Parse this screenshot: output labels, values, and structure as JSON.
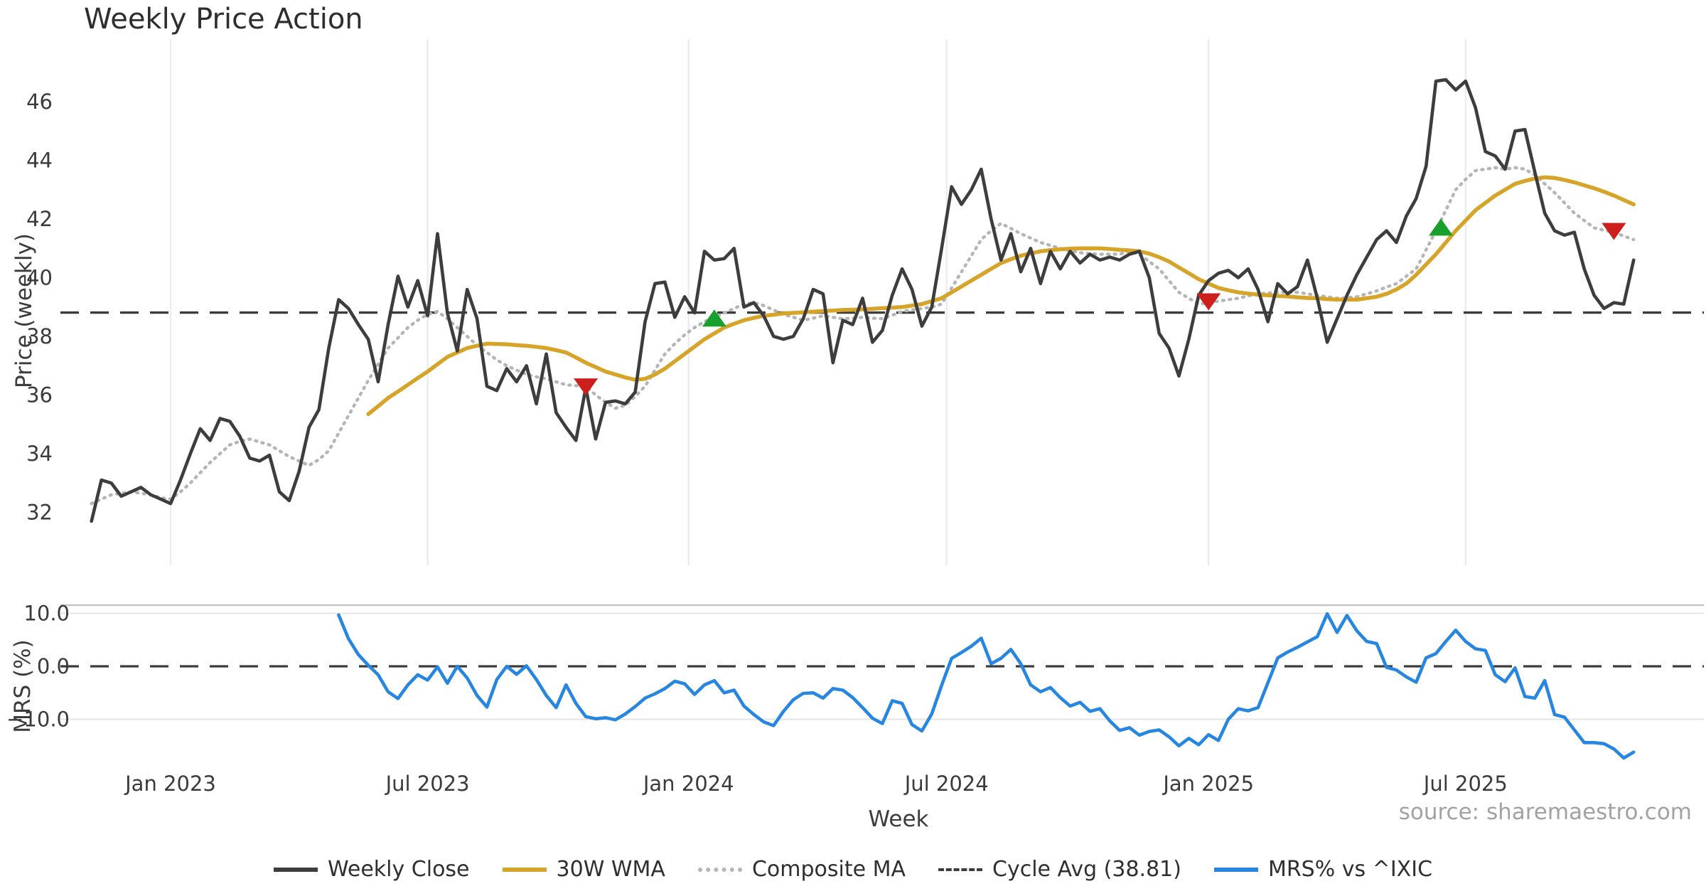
{
  "title": "Weekly Price Action",
  "source": "source: sharemaestro.com",
  "axes": {
    "price_label": "Price (weekly)",
    "mrs_label": "MRS (%)",
    "x_label": "Week"
  },
  "colors": {
    "close": "#3d3d3d",
    "wma": "#d7a42a",
    "composite": "#b5b5b5",
    "cycle": "#3c3c3c",
    "mrs": "#2786e0",
    "buy": "#18a02c",
    "sell": "#ce1f1f",
    "grid_vertical": "#e9ecf1",
    "grid_horizontal": "#e4e4e4",
    "top_spine": "#c2c2c2",
    "tick_text": "#3b3b3b"
  },
  "legend": [
    {
      "label": "Weekly Close",
      "color": "#3d3d3d",
      "style": "solid",
      "thickness": 6
    },
    {
      "label": "30W WMA",
      "color": "#d7a42a",
      "style": "solid",
      "thickness": 6
    },
    {
      "label": "Composite MA",
      "color": "#b5b5b5",
      "style": "dotted",
      "thickness": 6
    },
    {
      "label": "Cycle Avg (38.81)",
      "color": "#3c3c3c",
      "style": "dashed",
      "thickness": 4
    },
    {
      "label": "MRS% vs ^IXIC",
      "color": "#2786e0",
      "style": "solid",
      "thickness": 6
    }
  ],
  "chart_data": [
    {
      "type": "line",
      "title": "Weekly Price Action",
      "xlabel": "Week",
      "ylabel": "Price (weekly)",
      "x_unit": "weekly index, week 0 = early Nov 2022, 157 weeks total",
      "x_ticks": [
        {
          "week": 8,
          "label": "Jan 2023"
        },
        {
          "week": 34,
          "label": "Jul 2023"
        },
        {
          "week": 60.4,
          "label": "Jan 2024"
        },
        {
          "week": 86.5,
          "label": "Jul 2024"
        },
        {
          "week": 113,
          "label": "Jan 2025"
        },
        {
          "week": 139,
          "label": "Jul 2025"
        }
      ],
      "yticks": [
        32,
        34,
        36,
        38,
        40,
        42,
        44,
        46
      ],
      "ylim": [
        30.5,
        48.1
      ],
      "grid": "vertical-only",
      "cycle_avg": 38.81,
      "legend_position": "bottom-center",
      "series": [
        {
          "name": "Weekly Close",
          "values": [
            31.7,
            33.1,
            33.0,
            32.55,
            32.7,
            32.85,
            32.6,
            32.45,
            32.3,
            33.1,
            34.0,
            34.85,
            34.45,
            35.2,
            35.1,
            34.6,
            33.85,
            33.75,
            33.95,
            32.7,
            32.4,
            33.4,
            34.9,
            35.5,
            37.6,
            39.25,
            38.95,
            38.4,
            37.9,
            36.45,
            38.4,
            40.05,
            39.0,
            39.9,
            38.7,
            41.5,
            38.8,
            37.5,
            39.6,
            38.6,
            36.3,
            36.15,
            36.9,
            36.45,
            37.0,
            35.7,
            37.4,
            35.4,
            34.9,
            34.45,
            36.25,
            34.5,
            35.75,
            35.8,
            35.7,
            36.1,
            38.5,
            39.8,
            39.85,
            38.65,
            39.35,
            38.8,
            40.9,
            40.6,
            40.65,
            41.0,
            39.0,
            39.15,
            38.7,
            38.0,
            37.9,
            38.0,
            38.6,
            39.6,
            39.45,
            37.1,
            38.55,
            38.4,
            39.3,
            37.8,
            38.2,
            39.4,
            40.3,
            39.6,
            38.35,
            39.0,
            41.0,
            43.1,
            42.5,
            43.0,
            43.7,
            42.0,
            40.6,
            41.5,
            40.2,
            41.0,
            39.8,
            40.9,
            40.3,
            40.9,
            40.5,
            40.8,
            40.6,
            40.7,
            40.6,
            40.8,
            40.9,
            40.0,
            38.1,
            37.6,
            36.65,
            37.9,
            39.4,
            39.9,
            40.15,
            40.25,
            40.0,
            40.3,
            39.6,
            38.5,
            39.8,
            39.45,
            39.7,
            40.6,
            39.3,
            37.8,
            38.6,
            39.4,
            40.1,
            40.7,
            41.3,
            41.6,
            41.2,
            42.1,
            42.7,
            43.8,
            46.7,
            46.75,
            46.4,
            46.7,
            45.8,
            44.3,
            44.15,
            43.7,
            45.0,
            45.05,
            43.6,
            42.2,
            41.6,
            41.45,
            41.55,
            40.3,
            39.4,
            38.95,
            39.15,
            39.1,
            40.6
          ]
        },
        {
          "name": "30W WMA",
          "values": [
            null,
            null,
            null,
            null,
            null,
            null,
            null,
            null,
            null,
            null,
            null,
            null,
            null,
            null,
            null,
            null,
            null,
            null,
            null,
            null,
            null,
            null,
            null,
            null,
            null,
            null,
            null,
            null,
            35.35,
            35.62,
            35.9,
            36.12,
            36.35,
            36.58,
            36.8,
            37.05,
            37.3,
            37.45,
            37.6,
            37.68,
            37.75,
            37.74,
            37.73,
            37.7,
            37.68,
            37.64,
            37.6,
            37.53,
            37.45,
            37.28,
            37.1,
            36.95,
            36.8,
            36.7,
            36.6,
            36.52,
            36.55,
            36.7,
            36.9,
            37.15,
            37.4,
            37.65,
            37.9,
            38.1,
            38.3,
            38.43,
            38.55,
            38.63,
            38.7,
            38.74,
            38.78,
            38.8,
            38.82,
            38.84,
            38.86,
            38.88,
            38.9,
            38.91,
            38.92,
            38.94,
            38.96,
            38.98,
            39.0,
            39.05,
            39.1,
            39.2,
            39.3,
            39.5,
            39.7,
            39.9,
            40.1,
            40.3,
            40.5,
            40.63,
            40.75,
            40.83,
            40.9,
            40.94,
            40.97,
            40.99,
            41.0,
            41.0,
            41.0,
            40.98,
            40.95,
            40.93,
            40.9,
            40.82,
            40.7,
            40.55,
            40.35,
            40.15,
            39.95,
            39.8,
            39.65,
            39.57,
            39.5,
            39.46,
            39.42,
            39.4,
            39.38,
            39.36,
            39.33,
            39.31,
            39.3,
            39.27,
            39.25,
            39.25,
            39.25,
            39.3,
            39.35,
            39.45,
            39.6,
            39.8,
            40.1,
            40.45,
            40.8,
            41.2,
            41.6,
            41.95,
            42.3,
            42.55,
            42.8,
            43.0,
            43.2,
            43.3,
            43.38,
            43.42,
            43.4,
            43.33,
            43.25,
            43.15,
            43.05,
            42.93,
            42.8,
            42.65,
            42.5
          ]
        },
        {
          "name": "Composite MA",
          "values": [
            32.3,
            32.45,
            32.6,
            32.65,
            32.7,
            32.65,
            32.6,
            32.5,
            32.45,
            32.7,
            33.0,
            33.35,
            33.7,
            34.0,
            34.3,
            34.42,
            34.5,
            34.4,
            34.3,
            34.1,
            33.9,
            33.75,
            33.6,
            33.8,
            34.1,
            34.7,
            35.3,
            35.9,
            36.5,
            37.05,
            37.6,
            37.95,
            38.3,
            38.55,
            38.75,
            38.85,
            38.6,
            38.3,
            38.0,
            37.7,
            37.45,
            37.2,
            37.0,
            36.85,
            36.7,
            36.62,
            36.55,
            36.45,
            36.35,
            36.32,
            36.3,
            36.0,
            35.75,
            35.55,
            35.65,
            35.95,
            36.3,
            36.85,
            37.4,
            37.75,
            38.05,
            38.3,
            38.5,
            38.65,
            38.8,
            38.95,
            39.1,
            39.15,
            39.05,
            38.9,
            38.75,
            38.65,
            38.55,
            38.62,
            38.7,
            38.65,
            38.6,
            38.62,
            38.65,
            38.62,
            38.6,
            38.72,
            38.85,
            38.9,
            38.95,
            39.0,
            39.1,
            39.65,
            40.2,
            40.75,
            41.3,
            41.6,
            41.85,
            41.68,
            41.5,
            41.35,
            41.2,
            41.1,
            41.0,
            40.92,
            40.85,
            40.82,
            40.8,
            40.8,
            40.8,
            40.9,
            40.8,
            40.55,
            40.3,
            39.9,
            39.5,
            39.3,
            39.1,
            39.15,
            39.2,
            39.25,
            39.3,
            39.38,
            39.45,
            39.48,
            39.5,
            39.5,
            39.5,
            39.45,
            39.4,
            39.35,
            39.3,
            39.32,
            39.35,
            39.45,
            39.55,
            39.68,
            39.8,
            40.05,
            40.3,
            40.95,
            41.6,
            42.3,
            43.0,
            43.35,
            43.65,
            43.7,
            43.75,
            43.7,
            43.75,
            43.7,
            43.5,
            43.2,
            42.9,
            42.55,
            42.2,
            41.95,
            41.7,
            41.62,
            41.55,
            41.42,
            41.3
          ]
        }
      ],
      "markers": [
        {
          "signal": "sell",
          "week": 50,
          "value": 36.3
        },
        {
          "signal": "buy",
          "week": 63,
          "value": 38.6
        },
        {
          "signal": "sell",
          "week": 113,
          "value": 39.2
        },
        {
          "signal": "buy",
          "week": 136.5,
          "value": 41.7
        },
        {
          "signal": "sell",
          "week": 154,
          "value": 41.6
        }
      ]
    },
    {
      "type": "line",
      "ylabel": "MRS (%)",
      "yticks": [
        {
          "v": 10,
          "label": "10.0"
        },
        {
          "v": 0,
          "label": "0.0"
        },
        {
          "v": -10,
          "label": "−10.0"
        }
      ],
      "ylim": [
        -20.5,
        11.5
      ],
      "zero_line": 0,
      "grid": "horizontal-only",
      "series": [
        {
          "name": "MRS% vs ^IXIC",
          "values": [
            null,
            null,
            null,
            null,
            null,
            null,
            null,
            null,
            null,
            null,
            null,
            null,
            null,
            null,
            null,
            null,
            null,
            null,
            null,
            null,
            null,
            null,
            null,
            null,
            null,
            9.7,
            5.2,
            2.2,
            0.2,
            -1.6,
            -4.8,
            -6.1,
            -3.5,
            -1.6,
            -2.6,
            -0.1,
            -3.2,
            0.0,
            -2.2,
            -5.5,
            -7.7,
            -2.5,
            0.0,
            -1.5,
            0.1,
            -2.5,
            -5.5,
            -7.8,
            -3.5,
            -7.0,
            -9.5,
            -9.9,
            -9.7,
            -10.1,
            -9.0,
            -7.6,
            -6.0,
            -5.2,
            -4.2,
            -2.8,
            -3.3,
            -5.3,
            -3.5,
            -2.7,
            -5.0,
            -4.5,
            -7.5,
            -9.1,
            -10.5,
            -11.2,
            -8.5,
            -6.3,
            -5.1,
            -5.0,
            -6.0,
            -4.2,
            -4.5,
            -5.9,
            -7.8,
            -9.8,
            -10.8,
            -6.5,
            -7.0,
            -11.0,
            -12.2,
            -9.0,
            -3.6,
            1.5,
            2.6,
            3.8,
            5.3,
            0.5,
            1.5,
            3.2,
            0.5,
            -3.5,
            -4.8,
            -4.0,
            -5.9,
            -7.5,
            -6.8,
            -8.5,
            -8.0,
            -10.3,
            -12.1,
            -11.6,
            -13.0,
            -12.3,
            -12.0,
            -13.3,
            -15.0,
            -13.6,
            -14.8,
            -12.9,
            -14.0,
            -10.0,
            -8.0,
            -8.4,
            -7.8,
            -3.1,
            1.6,
            2.7,
            3.6,
            4.6,
            5.6,
            9.9,
            6.4,
            9.6,
            6.7,
            4.7,
            4.3,
            -0.2,
            -0.7,
            -2.0,
            -3.0,
            1.6,
            2.4,
            4.7,
            6.8,
            4.7,
            3.3,
            3.0,
            -1.6,
            -2.9,
            -0.3,
            -5.7,
            -6.0,
            -2.7,
            -9.1,
            -9.6,
            -12.0,
            -14.4,
            -14.4,
            -14.6,
            -15.6,
            -17.3,
            -16.2
          ]
        }
      ]
    }
  ]
}
